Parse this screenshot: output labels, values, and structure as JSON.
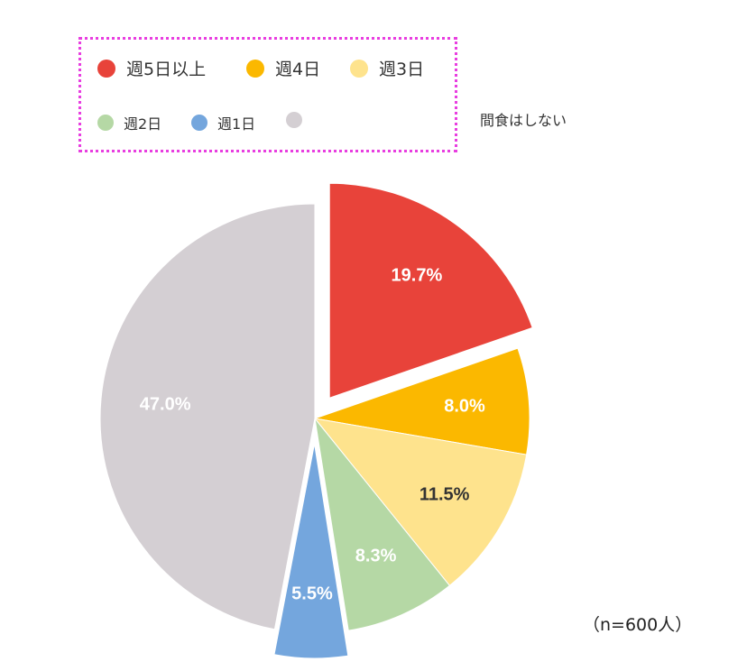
{
  "chart_data": {
    "type": "pie",
    "slices": [
      {
        "label": "週5日以上",
        "value": 19.7,
        "value_label": "19.7%",
        "color": "#e8433a",
        "label_color": "#ffffff"
      },
      {
        "label": "週4日",
        "value": 8.0,
        "value_label": "8.0%",
        "color": "#fbb800",
        "label_color": "#ffffff"
      },
      {
        "label": "週3日",
        "value": 11.5,
        "value_label": "11.5%",
        "color": "#fee38d",
        "label_color": "#333333"
      },
      {
        "label": "週2日",
        "value": 8.3,
        "value_label": "8.3%",
        "color": "#b5d8a5",
        "label_color": "#ffffff"
      },
      {
        "label": "週1日",
        "value": 5.5,
        "value_label": "5.5%",
        "color": "#74a6dd",
        "label_color": "#ffffff"
      },
      {
        "label": "間食はしない",
        "value": 47.0,
        "value_label": "47.0%",
        "color": "#d4cfd3",
        "label_color": "#ffffff"
      }
    ],
    "start_angle_deg": 0,
    "direction": "clockwise",
    "exploded_slices": [
      "週5日以上",
      "週1日"
    ],
    "legend_position": "top-left",
    "note": "（n=600人）"
  }
}
